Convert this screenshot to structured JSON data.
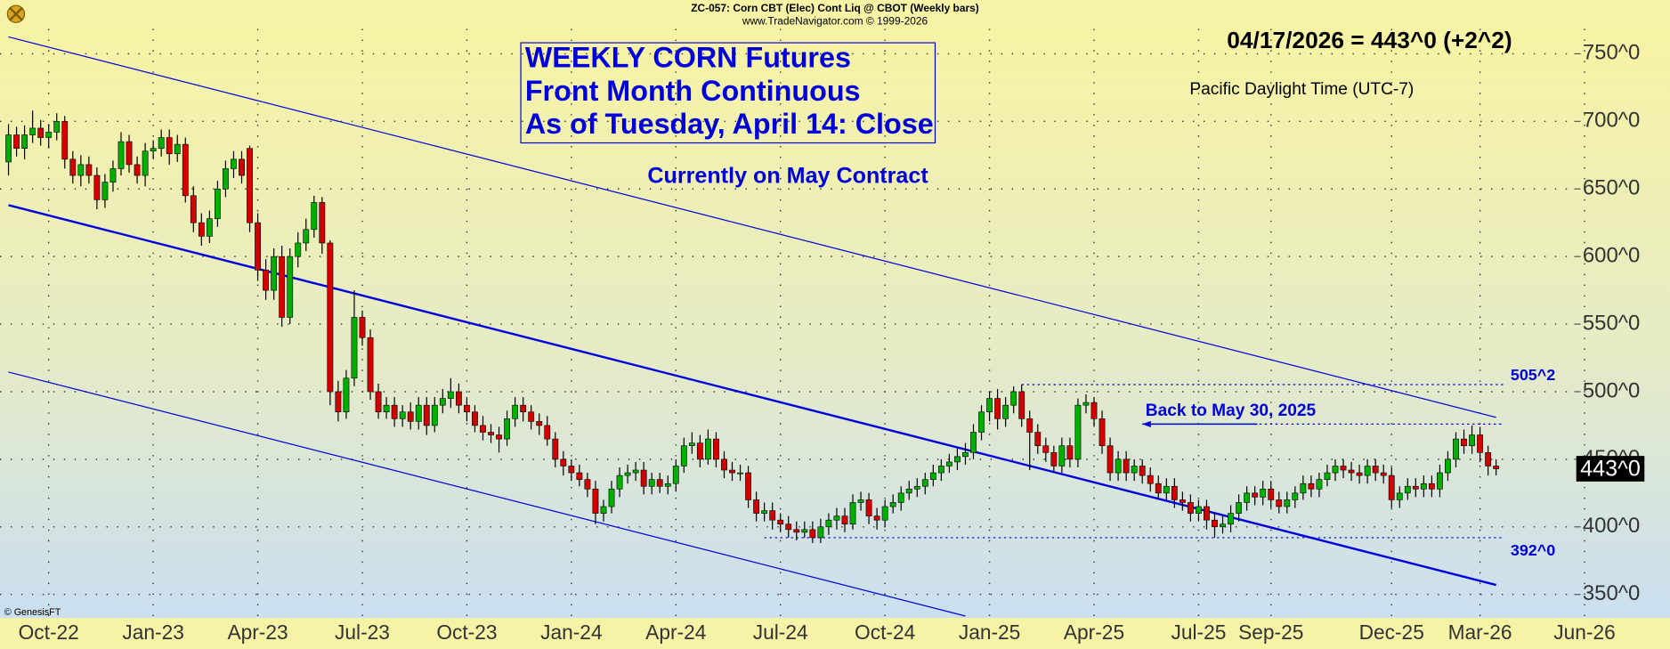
{
  "chart_data": {
    "type": "candlestick",
    "title": "ZC-057:  Corn CBT (Elec) Cont Liq @ CBOT  (Weekly bars)",
    "subtitle": "www.TradeNavigator.com © 1999-2026",
    "box_lines": [
      "WEEKLY CORN Futures",
      "Front Month Continuous",
      "As of Tuesday, April 14: Close"
    ],
    "note": "Currently on May Contract",
    "quote": "04/17/2026 = 443^0 (+2^2)",
    "timezone": "Pacific Daylight Time (UTC-7)",
    "credit": "© GenesisFT",
    "categories": [
      null,
      null,
      null,
      null,
      null,
      "Oct-22",
      null,
      null,
      null,
      null,
      null,
      null,
      null,
      null,
      null,
      null,
      null,
      null,
      "Jan-23",
      null,
      null,
      null,
      null,
      null,
      null,
      null,
      null,
      null,
      null,
      null,
      null,
      "Apr-23",
      null,
      null,
      null,
      null,
      null,
      null,
      null,
      null,
      null,
      null,
      null,
      null,
      "Jul-23",
      null,
      null,
      null,
      null,
      null,
      null,
      null,
      null,
      null,
      null,
      null,
      null,
      "Oct-23",
      null,
      null,
      null,
      null,
      null,
      null,
      null,
      null,
      null,
      null,
      null,
      null,
      "Jan-24",
      null,
      null,
      null,
      null,
      null,
      null,
      null,
      null,
      null,
      null,
      null,
      null,
      "Apr-24",
      null,
      null,
      null,
      null,
      null,
      null,
      null,
      null,
      null,
      null,
      null,
      null,
      "Jul-24",
      null,
      null,
      null,
      null,
      null,
      null,
      null,
      null,
      null,
      null,
      null,
      null,
      "Oct-24",
      null,
      null,
      null,
      null,
      null,
      null,
      null,
      null,
      null,
      null,
      null,
      null,
      "Jan-25",
      null,
      null,
      null,
      null,
      null,
      null,
      null,
      null,
      null,
      null,
      null,
      null,
      "Apr-25",
      null,
      null,
      null,
      null,
      null,
      null,
      null,
      null,
      null,
      null,
      null,
      null,
      "Jul-25",
      null,
      null,
      null,
      null,
      null,
      null,
      null,
      null,
      "Sep-25",
      null,
      null,
      null,
      null,
      null,
      null,
      null,
      null,
      null,
      null,
      null,
      null,
      null,
      null,
      "Dec-25",
      null,
      null,
      null,
      null,
      null,
      null,
      null,
      null,
      null,
      null,
      "Mar-26",
      null,
      null,
      null,
      null,
      null,
      null,
      null,
      null,
      null,
      null,
      null,
      null,
      "Jun-26"
    ],
    "open": [
      670,
      690,
      680,
      690,
      695,
      688,
      692,
      700,
      672,
      660,
      668,
      660,
      642,
      655,
      665,
      685,
      668,
      660,
      678,
      680,
      688,
      676,
      683,
      645,
      625,
      615,
      628,
      650,
      665,
      672,
      680,
      625,
      590,
      575,
      600,
      555,
      600,
      610,
      620,
      640,
      610,
      500,
      485,
      510,
      555,
      540,
      500,
      485,
      490,
      480,
      485,
      478,
      490,
      475,
      490,
      495,
      500,
      490,
      485,
      475,
      470,
      468,
      465,
      480,
      490,
      485,
      478,
      475,
      465,
      450,
      445,
      440,
      435,
      428,
      410,
      415,
      428,
      438,
      440,
      442,
      430,
      435,
      430,
      432,
      445,
      460,
      462,
      450,
      465,
      450,
      442,
      440,
      440,
      420,
      410,
      412,
      405,
      402,
      398,
      396,
      398,
      392,
      400,
      405,
      408,
      402,
      418,
      420,
      408,
      405,
      415,
      418,
      425,
      428,
      430,
      435,
      440,
      445,
      448,
      452,
      455,
      470,
      485,
      495,
      480,
      490,
      500,
      480,
      470,
      460,
      455,
      445,
      460,
      450,
      490,
      492,
      480,
      460,
      440,
      450,
      440,
      445,
      438,
      432,
      425,
      430,
      420,
      418,
      410,
      415,
      405,
      400,
      402,
      410,
      418,
      425,
      422,
      428,
      420,
      415,
      420,
      425,
      432,
      428,
      435,
      440,
      445,
      442,
      440,
      438,
      445,
      440,
      438,
      420,
      425,
      430,
      428,
      432,
      428,
      440,
      450,
      465,
      460,
      468,
      455,
      445,
      null,
      null,
      null,
      null,
      null,
      null,
      null,
      null,
      null,
      null,
      null
    ],
    "high": [
      698,
      696,
      697,
      708,
      701,
      698,
      706,
      704,
      678,
      675,
      674,
      666,
      661,
      671,
      692,
      690,
      674,
      684,
      686,
      694,
      694,
      690,
      688,
      652,
      632,
      634,
      656,
      671,
      678,
      678,
      682,
      632,
      598,
      606,
      608,
      606,
      618,
      628,
      645,
      644,
      612,
      508,
      516,
      575,
      560,
      546,
      506,
      496,
      496,
      490,
      492,
      496,
      496,
      496,
      502,
      510,
      506,
      496,
      490,
      482,
      476,
      474,
      486,
      496,
      496,
      490,
      484,
      482,
      470,
      456,
      450,
      446,
      440,
      434,
      420,
      434,
      444,
      446,
      448,
      448,
      440,
      440,
      438,
      450,
      466,
      470,
      468,
      472,
      470,
      456,
      448,
      446,
      445,
      426,
      418,
      418,
      410,
      408,
      404,
      404,
      404,
      406,
      410,
      414,
      414,
      424,
      426,
      425,
      414,
      420,
      424,
      430,
      434,
      436,
      440,
      446,
      450,
      454,
      458,
      462,
      476,
      490,
      500,
      502,
      496,
      504,
      505.25,
      486,
      476,
      466,
      460,
      466,
      466,
      495,
      498,
      496,
      486,
      466,
      456,
      456,
      450,
      450,
      444,
      438,
      436,
      436,
      426,
      424,
      420,
      420,
      410,
      408,
      416,
      424,
      430,
      430,
      434,
      434,
      426,
      426,
      430,
      438,
      438,
      440,
      446,
      450,
      450,
      448,
      446,
      450,
      450,
      446,
      444,
      430,
      436,
      436,
      438,
      438,
      446,
      456,
      470,
      472,
      475,
      474,
      460,
      450,
      null,
      null,
      null,
      null,
      null,
      null,
      null,
      null,
      null,
      null,
      null
    ],
    "low": [
      660,
      674,
      672,
      684,
      682,
      680,
      686,
      665,
      654,
      652,
      654,
      635,
      636,
      648,
      660,
      662,
      654,
      652,
      672,
      674,
      668,
      670,
      640,
      618,
      608,
      610,
      622,
      644,
      658,
      654,
      618,
      582,
      568,
      568,
      548,
      550,
      592,
      604,
      614,
      602,
      490,
      478,
      480,
      504,
      534,
      494,
      480,
      480,
      474,
      474,
      472,
      472,
      468,
      470,
      484,
      488,
      484,
      478,
      470,
      464,
      462,
      455,
      460,
      474,
      478,
      472,
      468,
      460,
      444,
      438,
      434,
      430,
      422,
      402,
      404,
      410,
      422,
      432,
      434,
      424,
      424,
      425,
      424,
      426,
      440,
      454,
      444,
      446,
      444,
      436,
      434,
      434,
      414,
      404,
      404,
      398,
      396,
      392,
      390,
      392,
      388,
      388,
      394,
      398,
      396,
      398,
      412,
      402,
      398,
      400,
      410,
      412,
      420,
      422,
      424,
      430,
      434,
      440,
      442,
      446,
      450,
      464,
      478,
      472,
      474,
      484,
      474,
      442,
      454,
      448,
      440,
      440,
      444,
      444,
      484,
      474,
      454,
      434,
      434,
      434,
      434,
      432,
      426,
      420,
      420,
      414,
      412,
      404,
      404,
      398,
      392,
      395,
      396,
      404,
      412,
      416,
      416,
      414,
      410,
      410,
      414,
      420,
      422,
      422,
      430,
      434,
      436,
      434,
      432,
      432,
      434,
      432,
      414,
      414,
      420,
      422,
      422,
      422,
      422,
      434,
      444,
      454,
      454,
      448,
      438,
      438,
      null,
      null,
      null,
      null,
      null,
      null,
      null,
      null,
      null,
      null,
      null
    ],
    "close": [
      690,
      680,
      690,
      695,
      688,
      692,
      700,
      672,
      660,
      668,
      660,
      642,
      655,
      665,
      685,
      668,
      660,
      678,
      680,
      688,
      676,
      683,
      645,
      625,
      615,
      628,
      650,
      665,
      672,
      660,
      625,
      590,
      575,
      600,
      555,
      600,
      610,
      620,
      640,
      610,
      500,
      485,
      510,
      555,
      540,
      500,
      485,
      490,
      480,
      485,
      478,
      490,
      475,
      490,
      495,
      500,
      490,
      485,
      475,
      470,
      468,
      465,
      480,
      490,
      485,
      478,
      475,
      465,
      450,
      445,
      440,
      435,
      428,
      410,
      415,
      428,
      438,
      440,
      442,
      430,
      435,
      430,
      432,
      445,
      460,
      462,
      450,
      465,
      450,
      442,
      440,
      440,
      420,
      410,
      412,
      405,
      402,
      398,
      396,
      398,
      392,
      400,
      405,
      408,
      402,
      418,
      420,
      408,
      405,
      415,
      418,
      425,
      428,
      430,
      435,
      440,
      445,
      448,
      452,
      455,
      470,
      485,
      495,
      480,
      490,
      500,
      480,
      470,
      460,
      455,
      445,
      460,
      450,
      490,
      492,
      480,
      460,
      440,
      450,
      440,
      445,
      438,
      432,
      425,
      430,
      420,
      418,
      410,
      415,
      405,
      400,
      402,
      410,
      418,
      425,
      422,
      428,
      420,
      415,
      420,
      425,
      432,
      428,
      435,
      440,
      445,
      442,
      440,
      438,
      445,
      440,
      438,
      420,
      425,
      430,
      428,
      432,
      428,
      440,
      450,
      465,
      460,
      468,
      455,
      445,
      443,
      null,
      null,
      null,
      null,
      null,
      null,
      null,
      null,
      null,
      null,
      null
    ],
    "up_color": "#00b000",
    "down_color": "#d40000",
    "line_color": "#0000dd",
    "ylim": [
      332.6,
      768.4
    ],
    "yticks": [
      {
        "value": 350,
        "label": "350^0"
      },
      {
        "value": 400,
        "label": "400^0"
      },
      {
        "value": 450,
        "label": "450^0"
      },
      {
        "value": 500,
        "label": "500^0"
      },
      {
        "value": 550,
        "label": "550^0"
      },
      {
        "value": 600,
        "label": "600^0"
      },
      {
        "value": 650,
        "label": "650^0"
      },
      {
        "value": 700,
        "label": "700^0"
      },
      {
        "value": 750,
        "label": "750^0"
      }
    ],
    "grid": true,
    "trendlines": [
      {
        "from": [
          0,
          762.5
        ],
        "to": [
          185,
          481
        ]
      },
      {
        "from": [
          0,
          638
        ],
        "to": [
          185,
          357
        ]
      },
      {
        "from": [
          0,
          514.5
        ],
        "to": [
          119,
          334
        ]
      }
    ],
    "levels": [
      {
        "value": 505.25,
        "label": "505^2",
        "from": 126,
        "to": 186
      },
      {
        "value": 392,
        "label": "392^0",
        "from": 94,
        "to": 186
      }
    ],
    "arrow": {
      "value": 476,
      "label": "Back to May 30, 2025",
      "from": 141,
      "to": 186
    },
    "last_price": {
      "value": 443,
      "label": "443^0"
    }
  }
}
